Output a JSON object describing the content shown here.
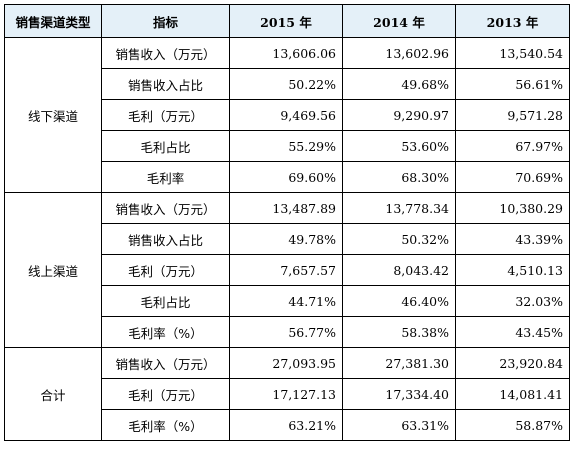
{
  "headers": [
    "销售渠道类型",
    "指标",
    "2015 年",
    "2014 年",
    "2013 年"
  ],
  "groups": [
    {
      "channel": "线下渠道",
      "rows": [
        {
          "metric": "销售收入（万元）",
          "v2015": "13,606.06",
          "v2014": "13,602.96",
          "v2013": "13,540.54"
        },
        {
          "metric": "销售收入占比",
          "v2015": "50.22%",
          "v2014": "49.68%",
          "v2013": "56.61%"
        },
        {
          "metric": "毛利（万元）",
          "v2015": "9,469.56",
          "v2014": "9,290.97",
          "v2013": "9,571.28"
        },
        {
          "metric": "毛利占比",
          "v2015": "55.29%",
          "v2014": "53.60%",
          "v2013": "67.97%"
        },
        {
          "metric": "毛利率",
          "v2015": "69.60%",
          "v2014": "68.30%",
          "v2013": "70.69%"
        }
      ]
    },
    {
      "channel": "线上渠道",
      "rows": [
        {
          "metric": "销售收入（万元）",
          "v2015": "13,487.89",
          "v2014": "13,778.34",
          "v2013": "10,380.29"
        },
        {
          "metric": "销售收入占比",
          "v2015": "49.78%",
          "v2014": "50.32%",
          "v2013": "43.39%"
        },
        {
          "metric": "毛利（万元）",
          "v2015": "7,657.57",
          "v2014": "8,043.42",
          "v2013": "4,510.13"
        },
        {
          "metric": "毛利占比",
          "v2015": "44.71%",
          "v2014": "46.40%",
          "v2013": "32.03%"
        },
        {
          "metric": "毛利率（%）",
          "v2015": "56.77%",
          "v2014": "58.38%",
          "v2013": "43.45%"
        }
      ]
    },
    {
      "channel": "合计",
      "rows": [
        {
          "metric": "销售收入（万元）",
          "v2015": "27,093.95",
          "v2014": "27,381.30",
          "v2013": "23,920.84"
        },
        {
          "metric": "毛利（万元）",
          "v2015": "17,127.13",
          "v2014": "17,334.40",
          "v2013": "14,081.41"
        },
        {
          "metric": "毛利率（%）",
          "v2015": "63.21%",
          "v2014": "63.31%",
          "v2013": "58.87%"
        }
      ]
    }
  ]
}
